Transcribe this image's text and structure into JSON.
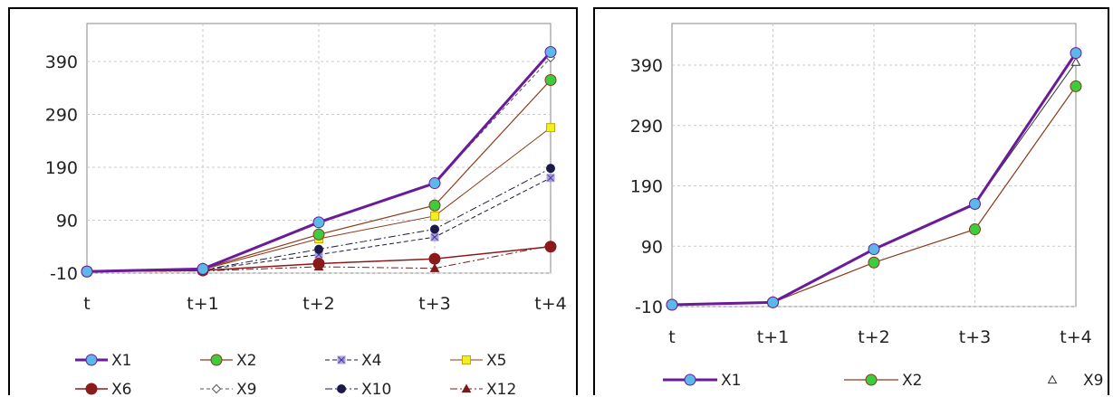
{
  "chart_data": [
    {
      "type": "line",
      "categories": [
        "t",
        "t+1",
        "t+2",
        "t+3",
        "t+4"
      ],
      "yticks": [
        -10,
        90,
        190,
        290,
        390
      ],
      "ylim": [
        -10,
        430
      ],
      "grid": true,
      "legend_position": "bottom",
      "series": [
        {
          "name": "X1",
          "values": [
            -7,
            -2,
            86,
            160,
            408
          ],
          "color": "#6a1b9a",
          "marker": "circle",
          "marker_color": "#5bb8e8",
          "dash": "",
          "width": 3
        },
        {
          "name": "X2",
          "values": [
            -7,
            -2,
            63,
            118,
            355
          ],
          "color": "#8b3a1a",
          "marker": "circle",
          "marker_color": "#3dcc3d",
          "dash": "",
          "width": 1.2
        },
        {
          "name": "X4",
          "values": [
            -7,
            -4,
            25,
            58,
            170
          ],
          "color": "#1a1a3a",
          "marker": "x",
          "marker_color": "#9a8cd8",
          "dash": "5,3",
          "width": 1
        },
        {
          "name": "X5",
          "values": [
            -7,
            -3,
            55,
            98,
            265
          ],
          "color": "#8b3a1a",
          "marker": "square",
          "marker_color": "#f0f020",
          "dash": "",
          "width": 1
        },
        {
          "name": "X6",
          "values": [
            -7,
            -5,
            8,
            17,
            40
          ],
          "color": "#8b1a1a",
          "marker": "circle",
          "marker_color": "#8b1a1a",
          "dash": "",
          "width": 1.5
        },
        {
          "name": "X9",
          "values": [
            -7,
            -2,
            84,
            160,
            397
          ],
          "color": "#555555",
          "marker": "diamond",
          "marker_color": "#ffffff",
          "dash": "4,3",
          "width": 1
        },
        {
          "name": "X10",
          "values": [
            -7,
            -4,
            35,
            73,
            188
          ],
          "color": "#1a1a4a",
          "marker": "circle",
          "marker_color": "#1a1a4a",
          "dash": "8,3,2,3",
          "width": 1
        },
        {
          "name": "X12",
          "values": [
            -7,
            -6,
            2,
            -1,
            42
          ],
          "color": "#7a1a1a",
          "marker": "triangle",
          "marker_color": "#7a1a1a",
          "dash": "8,3,2,3",
          "width": 1
        }
      ]
    },
    {
      "type": "line",
      "categories": [
        "t",
        "t+1",
        "t+2",
        "t+3",
        "t+4"
      ],
      "yticks": [
        -10,
        90,
        190,
        290,
        390
      ],
      "ylim": [
        -10,
        430
      ],
      "grid": true,
      "legend_position": "bottom",
      "series": [
        {
          "name": "X1",
          "values": [
            -7,
            -3,
            85,
            160,
            410
          ],
          "color": "#6a1b9a",
          "marker": "circle",
          "marker_color": "#5bb8e8",
          "dash": "",
          "width": 3
        },
        {
          "name": "X2",
          "values": [
            -7,
            -3,
            63,
            118,
            355
          ],
          "color": "#8b3a1a",
          "marker": "circle",
          "marker_color": "#3dcc3d",
          "dash": "",
          "width": 1.2
        },
        {
          "name": "X9",
          "values": [
            -7,
            -3,
            85,
            160,
            395
          ],
          "color": "#333333",
          "marker": "triangle-open",
          "marker_color": "#ffffff",
          "dash": "",
          "width": 1
        }
      ]
    }
  ]
}
